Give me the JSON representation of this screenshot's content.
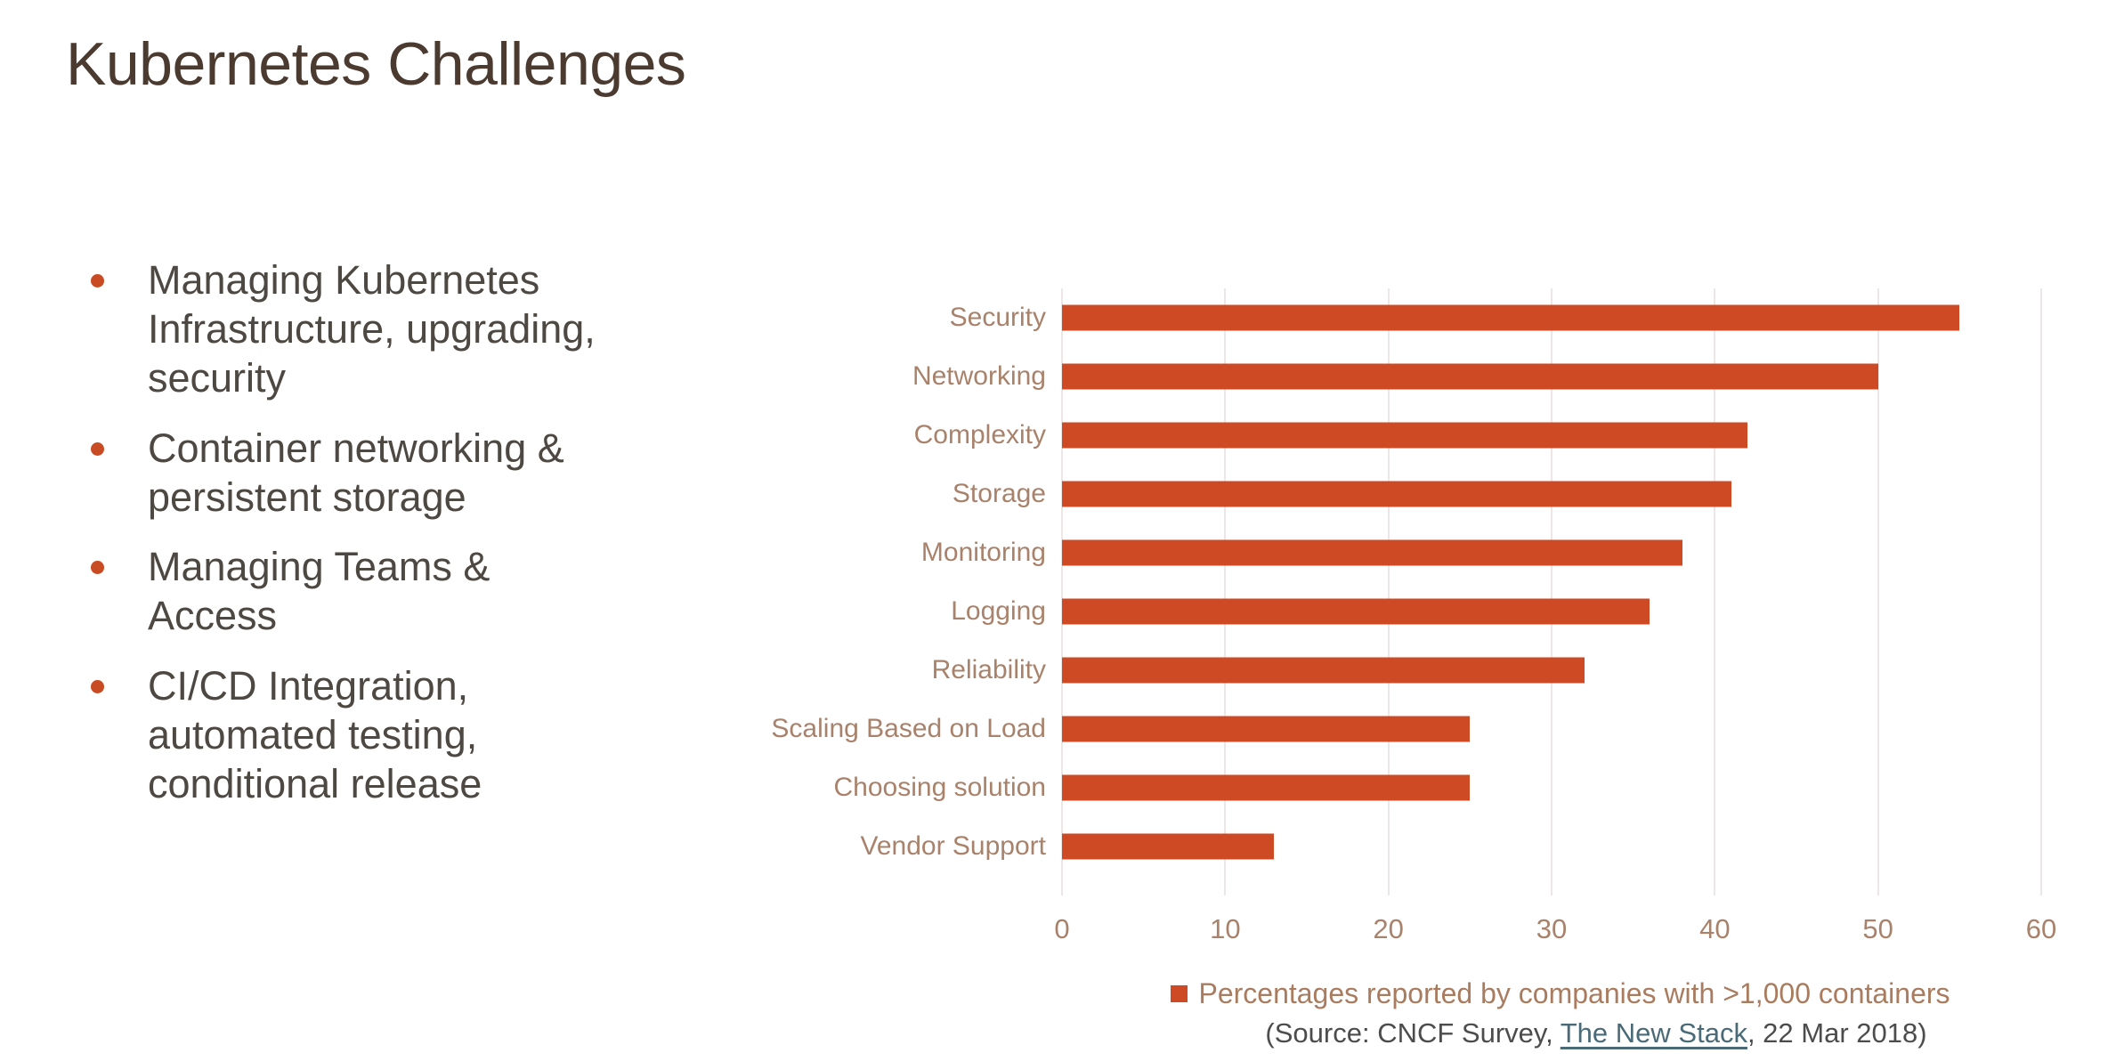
{
  "slide": {
    "title": "Kubernetes Challenges",
    "bullets": [
      [
        "Managing Kubernetes",
        "Infrastructure, upgrading,",
        "security"
      ],
      [
        "Container networking &",
        "persistent storage"
      ],
      [
        "Managing Teams &",
        "Access"
      ],
      [
        "CI/CD Integration,",
        "automated testing,",
        "conditional release"
      ]
    ]
  },
  "chart_data": {
    "type": "bar",
    "orientation": "horizontal",
    "categories": [
      "Security",
      "Networking",
      "Complexity",
      "Storage",
      "Monitoring",
      "Logging",
      "Reliability",
      "Scaling Based on Load",
      "Choosing solution",
      "Vendor Support"
    ],
    "values": [
      55,
      50,
      42,
      41,
      38,
      36,
      32,
      25,
      25,
      13
    ],
    "xlim": [
      0,
      60
    ],
    "x_ticks": [
      0,
      10,
      20,
      30,
      40,
      50,
      60
    ],
    "grid": true,
    "legend_position": "bottom",
    "legend_label": "Percentages reported by companies with >1,000 containers",
    "source_prefix": "(Source: CNCF Survey, ",
    "source_link": "The New Stack",
    "source_suffix": ", 22 Mar 2018)"
  },
  "colors": {
    "bg": "#ffffff",
    "title": "#4a3a30",
    "text": "#4e4842",
    "bullet": "#c94b24",
    "bar": "#ce4a24",
    "axis": "#a8826b",
    "grid": "#ece7e4",
    "legend": "#a97c5f",
    "source": "#4c4c4c",
    "link": "#4a6a77"
  }
}
